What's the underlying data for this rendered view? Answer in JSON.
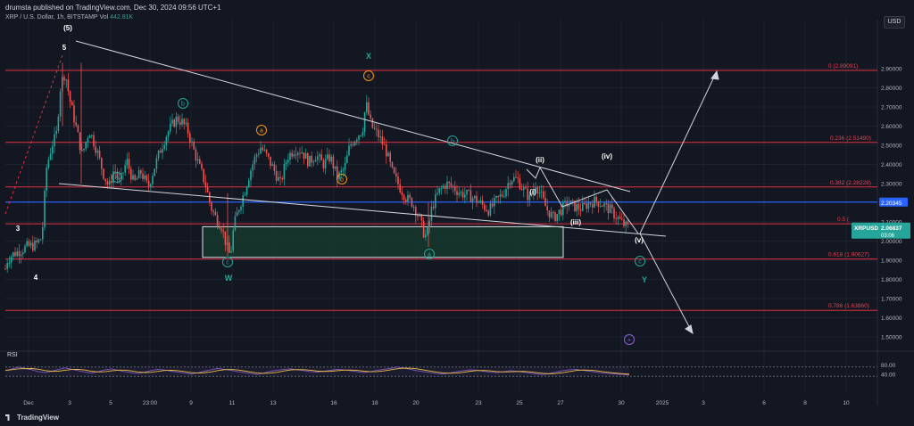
{
  "header": {
    "publisher": "drumsta published on TradingView.com, Dec 30, 2024 09:56 UTC+1",
    "symbol_line": "XRP / U.S. Dollar, 1h, BITSTAMP",
    "vol_label": "Vol",
    "vol_value": "442.81K"
  },
  "currency": "USD",
  "brand": "TradingView",
  "colors": {
    "background": "#131722",
    "fib_line": "#e03040",
    "fib_text": "#e8404e",
    "blue_line": "#2962ff",
    "trend": "#d1d4dc",
    "bull": "#26a69a",
    "bear": "#ef5350",
    "box_fill": "#16382c",
    "rsi": "#7e57c2",
    "rsi_ma": "#f0c040",
    "green_label": "#26a69a",
    "orange_label": "#f7931a"
  },
  "chart_data": {
    "type": "candlestick",
    "timeframe": "1h",
    "x_ticks": [
      "Dec",
      "3",
      "5",
      "23:00",
      "9",
      "11",
      "13",
      "16",
      "18",
      "20",
      "23",
      "25",
      "27",
      "30",
      "2025",
      "3",
      "6",
      "8",
      "10"
    ],
    "y_ticks": [
      "2.90000",
      "2.80000",
      "2.70000",
      "2.60000",
      "2.50000",
      "2.40000",
      "2.30000",
      "2.10000",
      "2.00000",
      "1.90000",
      "1.80000",
      "1.70000",
      "1.60000",
      "1.50000"
    ],
    "y_range": [
      1.43,
      3.0
    ],
    "price_path": [
      [
        0,
        1.72
      ],
      [
        8,
        1.9
      ],
      [
        14,
        1.93
      ],
      [
        22,
        1.95
      ],
      [
        30,
        1.97
      ],
      [
        40,
        1.98
      ],
      [
        47,
        2.02
      ],
      [
        52,
        2.38
      ],
      [
        58,
        2.5
      ],
      [
        63,
        2.55
      ],
      [
        68,
        2.82
      ],
      [
        73,
        2.88
      ],
      [
        78,
        2.74
      ],
      [
        84,
        2.62
      ],
      [
        92,
        2.45
      ],
      [
        100,
        2.58
      ],
      [
        108,
        2.48
      ],
      [
        116,
        2.35
      ],
      [
        122,
        2.28
      ],
      [
        128,
        2.38
      ],
      [
        134,
        2.3
      ],
      [
        142,
        2.42
      ],
      [
        150,
        2.3
      ],
      [
        158,
        2.36
      ],
      [
        166,
        2.28
      ],
      [
        174,
        2.4
      ],
      [
        180,
        2.48
      ],
      [
        186,
        2.55
      ],
      [
        192,
        2.6
      ],
      [
        198,
        2.64
      ],
      [
        204,
        2.62
      ],
      [
        210,
        2.58
      ],
      [
        218,
        2.46
      ],
      [
        224,
        2.38
      ],
      [
        230,
        2.3
      ],
      [
        236,
        2.18
      ],
      [
        242,
        2.12
      ],
      [
        248,
        2.08
      ],
      [
        254,
        1.97
      ],
      [
        258,
        1.92
      ],
      [
        262,
        2.08
      ],
      [
        268,
        2.18
      ],
      [
        274,
        2.26
      ],
      [
        280,
        2.36
      ],
      [
        286,
        2.44
      ],
      [
        292,
        2.49
      ],
      [
        298,
        2.45
      ],
      [
        306,
        2.38
      ],
      [
        314,
        2.3
      ],
      [
        322,
        2.44
      ],
      [
        330,
        2.48
      ],
      [
        338,
        2.47
      ],
      [
        346,
        2.41
      ],
      [
        354,
        2.45
      ],
      [
        362,
        2.4
      ],
      [
        370,
        2.44
      ],
      [
        378,
        2.33
      ],
      [
        386,
        2.38
      ],
      [
        392,
        2.5
      ],
      [
        400,
        2.55
      ],
      [
        406,
        2.58
      ],
      [
        410,
        2.72
      ],
      [
        416,
        2.6
      ],
      [
        424,
        2.55
      ],
      [
        432,
        2.48
      ],
      [
        440,
        2.35
      ],
      [
        448,
        2.28
      ],
      [
        456,
        2.22
      ],
      [
        462,
        2.2
      ],
      [
        470,
        2.12
      ],
      [
        474,
        2.05
      ],
      [
        478,
        2.02
      ],
      [
        484,
        2.18
      ],
      [
        492,
        2.26
      ],
      [
        500,
        2.3
      ],
      [
        508,
        2.28
      ],
      [
        516,
        2.25
      ],
      [
        524,
        2.24
      ],
      [
        532,
        2.22
      ],
      [
        540,
        2.19
      ],
      [
        548,
        2.16
      ],
      [
        556,
        2.21
      ],
      [
        564,
        2.25
      ],
      [
        572,
        2.33
      ],
      [
        580,
        2.32
      ],
      [
        586,
        2.27
      ],
      [
        594,
        2.22
      ],
      [
        600,
        2.3
      ],
      [
        606,
        2.24
      ],
      [
        612,
        2.17
      ],
      [
        620,
        2.12
      ],
      [
        628,
        2.16
      ],
      [
        636,
        2.2
      ],
      [
        644,
        2.18
      ],
      [
        652,
        2.17
      ],
      [
        660,
        2.2
      ],
      [
        668,
        2.21
      ],
      [
        676,
        2.19
      ],
      [
        684,
        2.16
      ],
      [
        692,
        2.12
      ],
      [
        700,
        2.08
      ],
      [
        705,
        2.07
      ]
    ],
    "fib_levels": [
      {
        "label": "0 (2.89091)",
        "value": 2.89091
      },
      {
        "label": "0.236 (2.51490)",
        "value": 2.5149
      },
      {
        "label": "0.382 (2.28228)",
        "value": 2.28228
      },
      {
        "label": "0.5 (",
        "value": 2.09
      },
      {
        "label": "0.618 (1.90627)",
        "value": 1.90627
      },
      {
        "label": "0.786 (1.63860)",
        "value": 1.6386
      }
    ],
    "horizontal_line": {
      "value": 2.20345,
      "label": "2.20345"
    },
    "last_price": {
      "symbol": "XRPUSD",
      "value": "2.06837",
      "countdown": "03:06"
    },
    "zone_box": {
      "from": 1.915,
      "to": 2.075
    },
    "wave_labels": [
      {
        "text": "5",
        "style": "white"
      },
      {
        "text": "(5)",
        "style": "white"
      },
      {
        "text": "3",
        "style": "white"
      },
      {
        "text": "4",
        "style": "white"
      },
      {
        "text": "X",
        "style": "green-plain"
      },
      {
        "text": "W",
        "style": "green-plain"
      },
      {
        "text": "Y",
        "style": "green-plain"
      },
      {
        "text": "a",
        "style": "green-circle"
      },
      {
        "text": "b",
        "style": "green-circle"
      },
      {
        "text": "c",
        "style": "green-circle"
      },
      {
        "text": "a",
        "style": "orange-circle"
      },
      {
        "text": "b",
        "style": "orange-circle"
      },
      {
        "text": "c",
        "style": "orange-circle"
      },
      {
        "text": "b",
        "style": "green-circle"
      },
      {
        "text": "a",
        "style": "green-circle"
      },
      {
        "text": "c",
        "style": "green-circle"
      },
      {
        "text": "(i)",
        "style": "white"
      },
      {
        "text": "(ii)",
        "style": "white"
      },
      {
        "text": "(iii)",
        "style": "white"
      },
      {
        "text": "(iv)",
        "style": "white"
      },
      {
        "text": "(v)",
        "style": "white"
      }
    ],
    "rsi": {
      "label": "RSI",
      "ticks": [
        "80.00",
        "40.00"
      ],
      "values": [
        55,
        62,
        70,
        64,
        58,
        50,
        46,
        52,
        60,
        66,
        60,
        54,
        48,
        44,
        50,
        58,
        62,
        56,
        50,
        45,
        42,
        48,
        55,
        60,
        57,
        52,
        48,
        44,
        40,
        45,
        52,
        58,
        64,
        60,
        56,
        50,
        46,
        42,
        38,
        44,
        52,
        56,
        60,
        62,
        58,
        54,
        50,
        48,
        52,
        56,
        60,
        58,
        54,
        50,
        46,
        50,
        56,
        60,
        64,
        70,
        66,
        60,
        54,
        50,
        46,
        42,
        40,
        44,
        50,
        54,
        58,
        56,
        52,
        48,
        46,
        50,
        54,
        52,
        48,
        44,
        40,
        38,
        42,
        48,
        54,
        58,
        60,
        56,
        52,
        48,
        44,
        42,
        40,
        38,
        36
      ]
    }
  }
}
